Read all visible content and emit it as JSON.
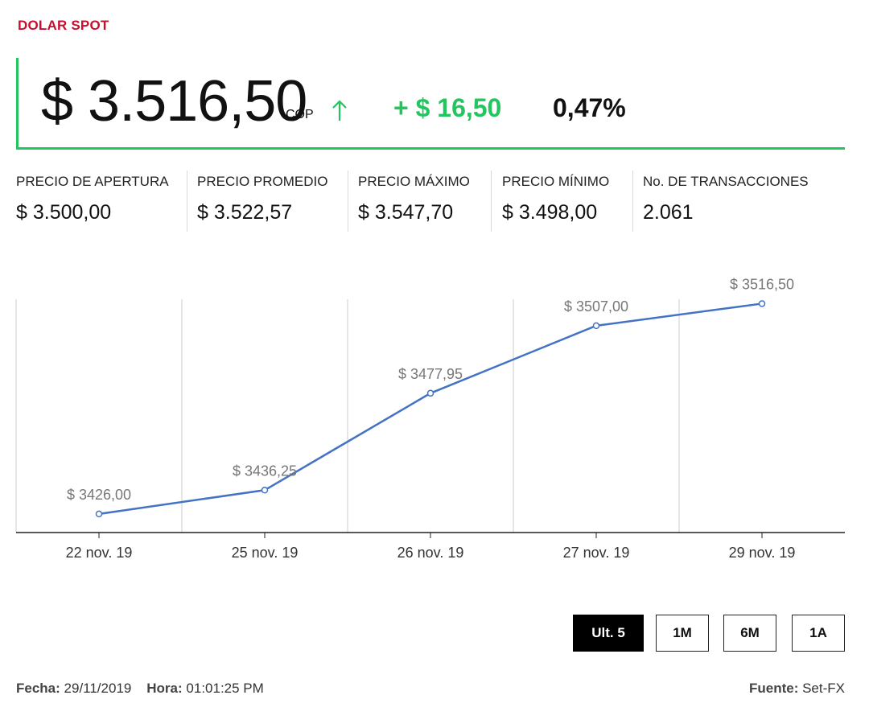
{
  "header": {
    "title": "DOLAR SPOT"
  },
  "quote": {
    "price": "$ 3.516,50",
    "currency": "COP",
    "direction_icon": "arrow-up-icon",
    "change": "+ $ 16,50",
    "change_pct": "0,47%"
  },
  "stats": [
    {
      "label": "PRECIO DE APERTURA",
      "value": "$ 3.500,00"
    },
    {
      "label": "PRECIO PROMEDIO",
      "value": "$ 3.522,57"
    },
    {
      "label": "PRECIO MÁXIMO",
      "value": "$ 3.547,70"
    },
    {
      "label": "PRECIO MÍNIMO",
      "value": "$ 3.498,00"
    },
    {
      "label": "No. DE TRANSACCIONES",
      "value": "2.061"
    }
  ],
  "chart_data": {
    "type": "line",
    "categories": [
      "22 nov. 19",
      "25 nov. 19",
      "26 nov. 19",
      "27 nov. 19",
      "29 nov. 19"
    ],
    "series": [
      {
        "values": [
          3426.0,
          3436.25,
          3477.95,
          3507.0,
          3516.5
        ]
      }
    ],
    "data_labels": [
      "$ 3426,00",
      "$ 3436,25",
      "$ 3477,95",
      "$ 3507,00",
      "$ 3516,50"
    ],
    "ylim": [
      3418,
      3526
    ],
    "grid": "vertical",
    "line_color": "#4472c4"
  },
  "range_buttons": [
    {
      "label": "Ult. 5",
      "active": true
    },
    {
      "label": "1M",
      "active": false
    },
    {
      "label": "6M",
      "active": false
    },
    {
      "label": "1A",
      "active": false
    }
  ],
  "footer": {
    "date_label": "Fecha:",
    "date_value": "29/11/2019",
    "time_label": "Hora:",
    "time_value": "01:01:25 PM",
    "source_label": "Fuente:",
    "source_value": "Set-FX"
  },
  "colors": {
    "accent_red": "#c8102e",
    "up_green": "#22c55e",
    "line_blue": "#4472c4"
  }
}
